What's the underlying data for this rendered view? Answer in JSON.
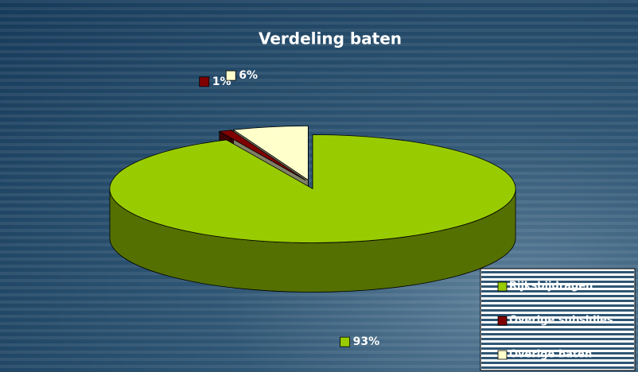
{
  "chart_data": {
    "type": "pie",
    "title": "Verdeling baten",
    "categories": [
      "Rijksbijdragen",
      "Overige subsidies",
      "Overige baten"
    ],
    "values": [
      93,
      1,
      6
    ],
    "value_labels": [
      "93%",
      "1%",
      "6%"
    ],
    "colors": [
      "#99cc00",
      "#800000",
      "#ffffcc"
    ],
    "legend": "lower right"
  }
}
